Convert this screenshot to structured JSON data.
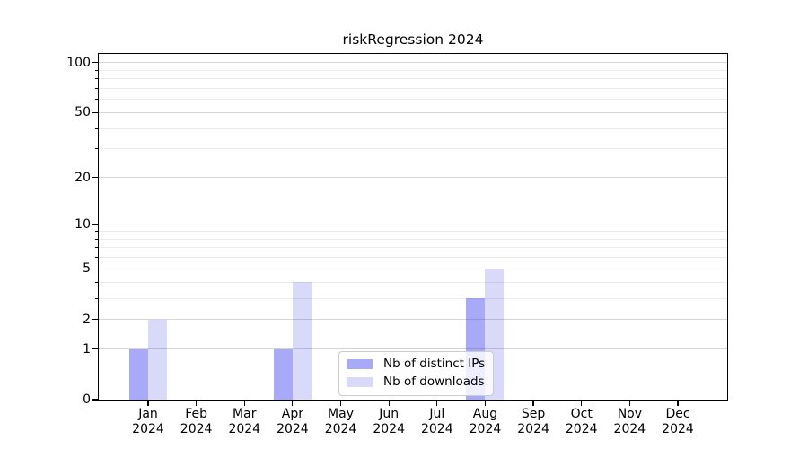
{
  "figure": {
    "background": "#ffffff"
  },
  "chart_data": {
    "type": "bar",
    "title": "riskRegression 2024",
    "x_categories": [
      "Jan",
      "Feb",
      "Mar",
      "Apr",
      "May",
      "Jun",
      "Jul",
      "Aug",
      "Sep",
      "Oct",
      "Nov",
      "Dec"
    ],
    "x_year": "2024",
    "series": [
      {
        "name": "Nb of distinct IPs",
        "color": "#4848f4",
        "alpha": 0.47,
        "values": [
          1,
          0,
          0,
          1,
          0,
          0,
          0,
          3,
          0,
          0,
          0,
          0
        ]
      },
      {
        "name": "Nb of downloads",
        "color": "#4141e6",
        "alpha": 0.2,
        "values": [
          2,
          0,
          0,
          4,
          0,
          0,
          0,
          5,
          0,
          0,
          0,
          0
        ]
      }
    ],
    "yscale": "log10(1+y)",
    "ylim": [
      0,
      113
    ],
    "yticks_major": [
      0,
      1,
      2,
      5,
      10,
      20,
      50,
      100
    ],
    "yticks_minor": [
      3,
      4,
      6,
      7,
      8,
      9,
      30,
      40,
      60,
      70,
      80,
      90
    ],
    "grid": {
      "major_color": "#d4d4d4",
      "minor_color": "#ebebeb",
      "visible": true
    },
    "axis_color": "#000000",
    "legend": {
      "position": "lower-center-inside"
    }
  }
}
